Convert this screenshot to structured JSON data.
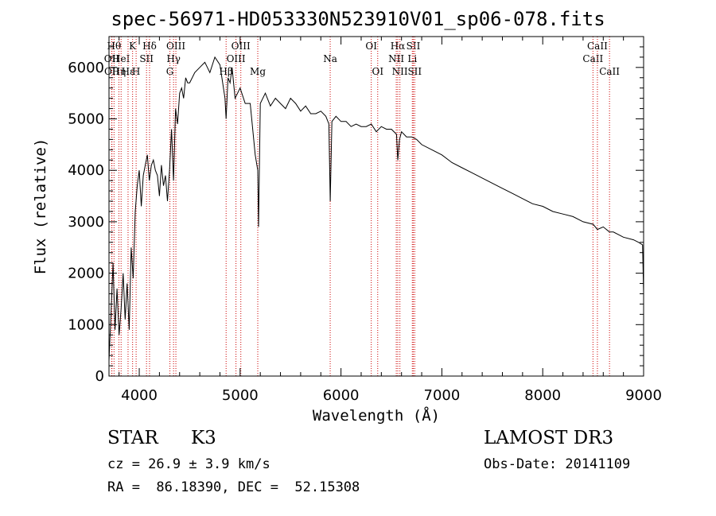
{
  "chart_data": {
    "type": "line",
    "title": "spec-56971-HD053330N523910V01_sp06-078.fits",
    "xlabel": "Wavelength (Å)",
    "ylabel": "Flux (relative)",
    "xlim": [
      3700,
      9000
    ],
    "ylim": [
      0,
      6600
    ],
    "xticks": [
      4000,
      5000,
      6000,
      7000,
      8000,
      9000
    ],
    "yticks": [
      0,
      1000,
      2000,
      3000,
      4000,
      5000,
      6000
    ],
    "grid": false,
    "line_color": "#000000",
    "marker_line_color": "#cc0000",
    "series": [
      {
        "x": [
          3700,
          3720,
          3740,
          3760,
          3780,
          3800,
          3820,
          3840,
          3860,
          3880,
          3900,
          3920,
          3940,
          3960,
          3980,
          4000,
          4020,
          4040,
          4060,
          4080,
          4100,
          4120,
          4140,
          4160,
          4180,
          4200,
          4220,
          4240,
          4260,
          4280,
          4300,
          4320,
          4340,
          4360,
          4380,
          4400,
          4420,
          4440,
          4460,
          4480,
          4500,
          4550,
          4600,
          4650,
          4700,
          4750,
          4800,
          4850,
          4861,
          4880,
          4900,
          4920,
          4950,
          5000,
          5050,
          5100,
          5150,
          5175,
          5183,
          5200,
          5250,
          5300,
          5350,
          5400,
          5450,
          5500,
          5550,
          5600,
          5650,
          5700,
          5750,
          5800,
          5850,
          5880,
          5893,
          5910,
          5950,
          6000,
          6050,
          6100,
          6150,
          6200,
          6250,
          6300,
          6350,
          6400,
          6450,
          6500,
          6550,
          6563,
          6580,
          6600,
          6650,
          6700,
          6750,
          6800,
          6900,
          7000,
          7100,
          7200,
          7300,
          7400,
          7500,
          7600,
          7700,
          7800,
          7900,
          8000,
          8100,
          8200,
          8300,
          8400,
          8500,
          8542,
          8600,
          8662,
          8700,
          8800,
          8900,
          8950,
          8990,
          9000
        ],
        "y": [
          300,
          1200,
          2200,
          900,
          1700,
          800,
          1300,
          2000,
          1100,
          1800,
          900,
          2500,
          1900,
          3200,
          3700,
          4000,
          3300,
          3900,
          4100,
          4300,
          3800,
          4100,
          4200,
          4000,
          3900,
          3500,
          4100,
          3700,
          3900,
          3400,
          4000,
          4800,
          3800,
          5200,
          4900,
          5500,
          5600,
          5400,
          5800,
          5700,
          5700,
          5900,
          6000,
          6100,
          5900,
          6200,
          6050,
          5400,
          5000,
          5800,
          5700,
          6000,
          5400,
          5600,
          5300,
          5300,
          4300,
          4000,
          2900,
          5300,
          5500,
          5250,
          5400,
          5300,
          5200,
          5400,
          5300,
          5150,
          5250,
          5100,
          5100,
          5150,
          5050,
          4900,
          3400,
          4950,
          5050,
          4950,
          4950,
          4850,
          4900,
          4850,
          4850,
          4900,
          4750,
          4850,
          4800,
          4800,
          4700,
          4200,
          4600,
          4750,
          4650,
          4650,
          4600,
          4500,
          4400,
          4300,
          4150,
          4050,
          3950,
          3850,
          3750,
          3650,
          3550,
          3450,
          3350,
          3300,
          3200,
          3150,
          3100,
          3000,
          2950,
          2850,
          2900,
          2800,
          2800,
          2700,
          2650,
          2600,
          2550,
          1600
        ]
      }
    ],
    "line_markers": [
      {
        "wavelength": 3750,
        "label": "Hθ",
        "row": 0
      },
      {
        "wavelength": 3727,
        "label": "OII",
        "row": 1
      },
      {
        "wavelength": 3729,
        "label": "OII",
        "row": 2
      },
      {
        "wavelength": 3798,
        "label": "Hη",
        "row": 2
      },
      {
        "wavelength": 3820,
        "label": "HeI",
        "row": 1
      },
      {
        "wavelength": 3889,
        "label": "Hε",
        "row": 2
      },
      {
        "wavelength": 3934,
        "label": "K",
        "row": 0
      },
      {
        "wavelength": 3969,
        "label": "H",
        "row": 2
      },
      {
        "wavelength": 4072,
        "label": "SII",
        "row": 1
      },
      {
        "wavelength": 4102,
        "label": "Hδ",
        "row": 0
      },
      {
        "wavelength": 4304,
        "label": "G",
        "row": 2
      },
      {
        "wavelength": 4340,
        "label": "Hγ",
        "row": 1
      },
      {
        "wavelength": 4363,
        "label": "OIII",
        "row": 0
      },
      {
        "wavelength": 4861,
        "label": "Hβ",
        "row": 2
      },
      {
        "wavelength": 4959,
        "label": "OIII",
        "row": 1
      },
      {
        "wavelength": 5007,
        "label": "OIII",
        "row": 0
      },
      {
        "wavelength": 5175,
        "label": "Mg",
        "row": 2
      },
      {
        "wavelength": 5893,
        "label": "Na",
        "row": 1
      },
      {
        "wavelength": 6300,
        "label": "OI",
        "row": 0
      },
      {
        "wavelength": 6364,
        "label": "OI",
        "row": 2
      },
      {
        "wavelength": 6548,
        "label": "NII",
        "row": 1
      },
      {
        "wavelength": 6563,
        "label": "Hα",
        "row": 0
      },
      {
        "wavelength": 6584,
        "label": "NII",
        "row": 2
      },
      {
        "wavelength": 6707,
        "label": "Li",
        "row": 1
      },
      {
        "wavelength": 6717,
        "label": "SII",
        "row": 0
      },
      {
        "wavelength": 6731,
        "label": "SII",
        "row": 2
      },
      {
        "wavelength": 8498,
        "label": "CaII",
        "row": 1
      },
      {
        "wavelength": 8542,
        "label": "CaII",
        "row": 0
      },
      {
        "wavelength": 8662,
        "label": "CaII",
        "row": 2
      }
    ]
  },
  "info": {
    "object_class": "STAR",
    "subclass": "K3",
    "survey": "LAMOST DR3",
    "redshift": "cz = 26.9 ± 3.9 km/s",
    "obs_date": "Obs-Date: 20141109",
    "coords": "RA =  86.18390, DEC =  52.15308"
  }
}
